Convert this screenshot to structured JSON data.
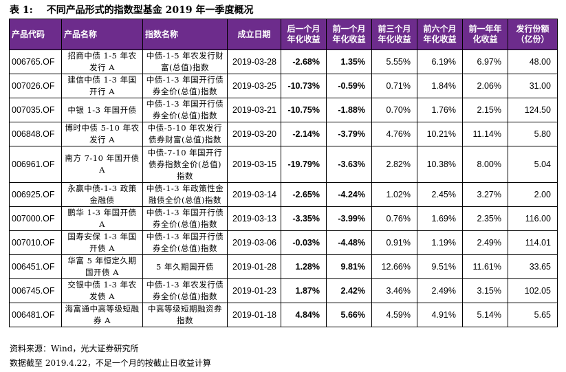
{
  "title": {
    "label": "表 1:",
    "text": "不同产品形式的指数型基金 2019 年一季度概况"
  },
  "table": {
    "headers": [
      "产品代码",
      "产品名称",
      "指数名称",
      "成立日期",
      "后一个月年化收益",
      "前一个月年化收益",
      "前三个月年化收益",
      "前六个月年化收益",
      "前一年年化收益",
      "发行份额（亿份）"
    ],
    "rows": [
      [
        "006765.OF",
        "招商中债 1-5 年农发行 A",
        "中债-1-5 年农发行财富(总值)指数",
        "2019-03-28",
        "-2.68%",
        "1.35%",
        "5.55%",
        "6.19%",
        "6.97%",
        "48.00"
      ],
      [
        "007026.OF",
        "建信中债 1-3 年国开行 A",
        "中债-1-3 年国开行债券全价(总值)指数",
        "2019-03-25",
        "-10.73%",
        "-0.59%",
        "0.71%",
        "1.84%",
        "2.06%",
        "31.00"
      ],
      [
        "007035.OF",
        "中银 1-3 年国开债",
        "中债-1-3 年国开行债券全价(总值)指数",
        "2019-03-21",
        "-10.75%",
        "-1.88%",
        "0.70%",
        "1.76%",
        "2.15%",
        "124.50"
      ],
      [
        "006848.OF",
        "博时中债 5-10 年农发行 A",
        "中债-5-10 年农发行债券财富(总值)指数",
        "2019-03-20",
        "-2.14%",
        "-3.79%",
        "4.76%",
        "10.21%",
        "11.14%",
        "5.80"
      ],
      [
        "006961.OF",
        "南方 7-10 年国开债 A",
        "中债-7-10 年国开行债券指数全价(总值)指数",
        "2019-03-15",
        "-19.79%",
        "-3.63%",
        "2.82%",
        "10.38%",
        "8.00%",
        "5.04"
      ],
      [
        "006925.OF",
        "永赢中债-1-3 政策金融债",
        "中债-1-3 年政策性金融债全价(总值)指数",
        "2019-03-14",
        "-2.65%",
        "-4.24%",
        "1.02%",
        "2.45%",
        "3.27%",
        "2.00"
      ],
      [
        "007000.OF",
        "鹏华 1-3 年国开债 A",
        "中债-1-3 年国开行债券全价(总值)指数",
        "2019-03-13",
        "-3.35%",
        "-3.99%",
        "0.76%",
        "1.69%",
        "2.35%",
        "116.00"
      ],
      [
        "007010.OF",
        "国寿安保 1-3 年国开债 A",
        "中债-1-3 年国开行债券全价(总值)指数",
        "2019-03-06",
        "-0.03%",
        "-4.48%",
        "0.91%",
        "1.19%",
        "2.49%",
        "114.01"
      ],
      [
        "006451.OF",
        "华富 5 年恒定久期国开债 A",
        "5 年久期国开债",
        "2019-01-28",
        "1.28%",
        "9.81%",
        "12.66%",
        "9.51%",
        "11.61%",
        "33.65"
      ],
      [
        "006745.OF",
        "交银中债 1-3 年农发债 A",
        "中债-1-3 年农发行债券全价(总值)指数",
        "2019-01-23",
        "1.87%",
        "2.42%",
        "3.46%",
        "2.49%",
        "3.15%",
        "102.05"
      ],
      [
        "006481.OF",
        "海富通中高等级短融券 A",
        "中高等级短期融资券指数",
        "2019-01-18",
        "4.84%",
        "5.66%",
        "4.59%",
        "4.91%",
        "5.14%",
        "5.65"
      ]
    ]
  },
  "footer": {
    "source": "资料来源：Wind，光大证券研究所",
    "note": "数据截至 2019.4.22，不足一个月的按截止日收益计算"
  },
  "colors": {
    "header_bg": "#6d2c8c",
    "header_text": "#ffffff",
    "border": "#000000"
  }
}
